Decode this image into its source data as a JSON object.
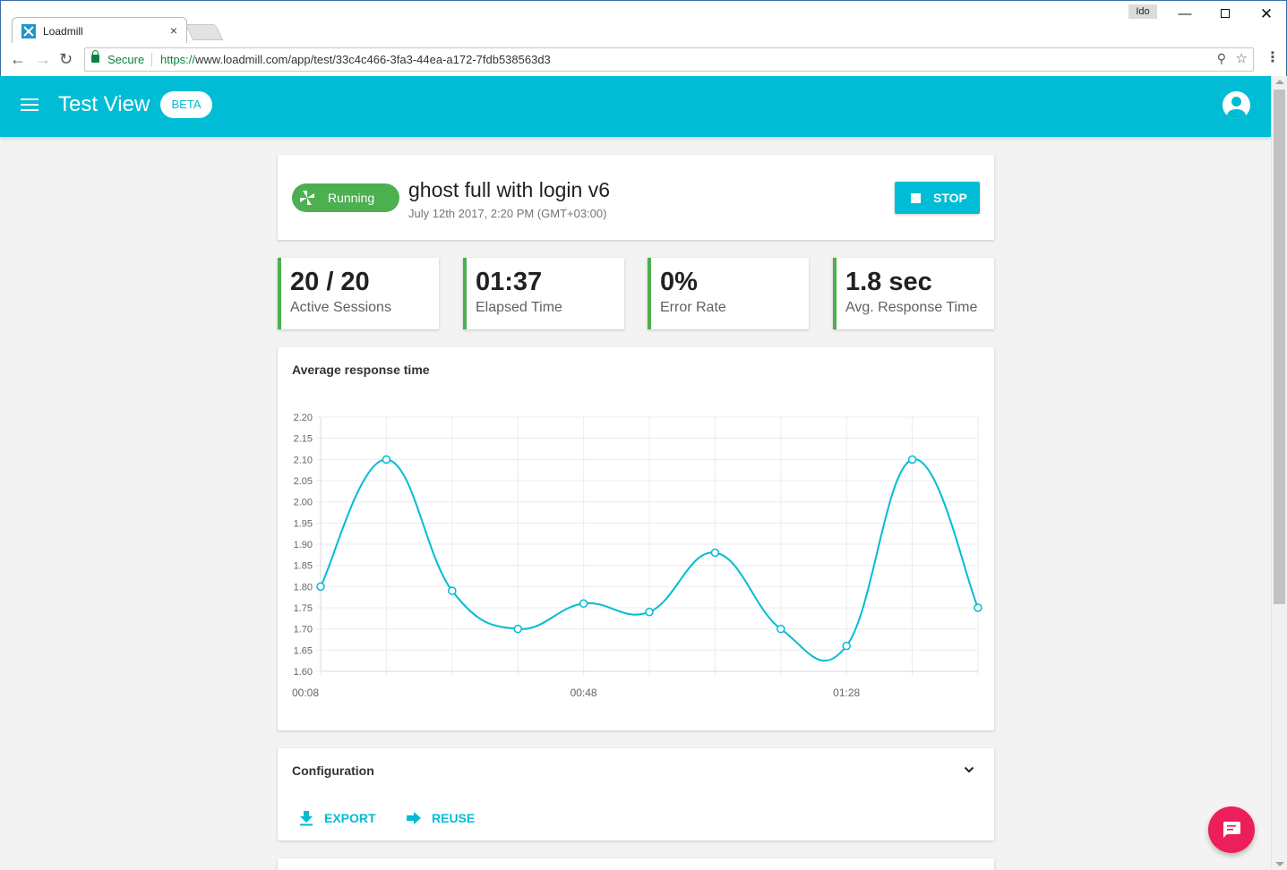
{
  "browser": {
    "tab_title": "Loadmill",
    "tab_close": "×",
    "user_badge": "Ido",
    "secure_label": "Secure",
    "url_scheme": "https://",
    "url_rest": "www.loadmill.com/app/test/33c4c466-3fa3-44ea-a172-7fdb538563d3"
  },
  "header": {
    "title": "Test View",
    "badge": "BETA"
  },
  "test": {
    "status": "Running",
    "status_color": "#4caf50",
    "name": "ghost full with login v6",
    "date": "July 12th 2017, 2:20 PM (GMT+03:00)",
    "stop_label": "STOP"
  },
  "stats": [
    {
      "value": "20 / 20",
      "label": "Active Sessions"
    },
    {
      "value": "01:37",
      "label": "Elapsed Time"
    },
    {
      "value": "0%",
      "label": "Error Rate"
    },
    {
      "value": "1.8 sec",
      "label": "Avg. Response Time"
    }
  ],
  "chart_title": "Average response time",
  "chart_data": {
    "type": "line",
    "title": "Average response time",
    "x": [
      "00:08",
      "00:18",
      "00:28",
      "00:38",
      "00:48",
      "00:58",
      "01:08",
      "01:18",
      "01:28",
      "01:38",
      "01:48"
    ],
    "x_tick_labels": [
      "00:08",
      "00:48",
      "01:28"
    ],
    "series": [
      {
        "values": [
          1.8,
          2.1,
          1.79,
          1.7,
          1.76,
          1.74,
          1.88,
          1.7,
          1.66,
          2.1,
          1.75
        ],
        "color": "#00bcd4"
      }
    ],
    "ylim": [
      1.6,
      2.2
    ],
    "y_ticks": [
      "2.20",
      "2.15",
      "2.10",
      "2.05",
      "2.00",
      "1.95",
      "1.90",
      "1.85",
      "1.80",
      "1.75",
      "1.70",
      "1.65",
      "1.60"
    ],
    "grid": true,
    "legend": "none"
  },
  "config": {
    "title": "Configuration",
    "export_label": "EXPORT",
    "reuse_label": "REUSE"
  },
  "colors": {
    "primary": "#00bcd4",
    "success": "#4caf50",
    "fab": "#ec1f5b"
  },
  "icons": {
    "menu": "hamburger-icon",
    "account": "account-circle-icon",
    "stop": "stop-icon",
    "export": "download-icon",
    "reuse": "arrow-forward-icon",
    "expand": "chevron-down-icon",
    "chat": "chat-icon"
  }
}
